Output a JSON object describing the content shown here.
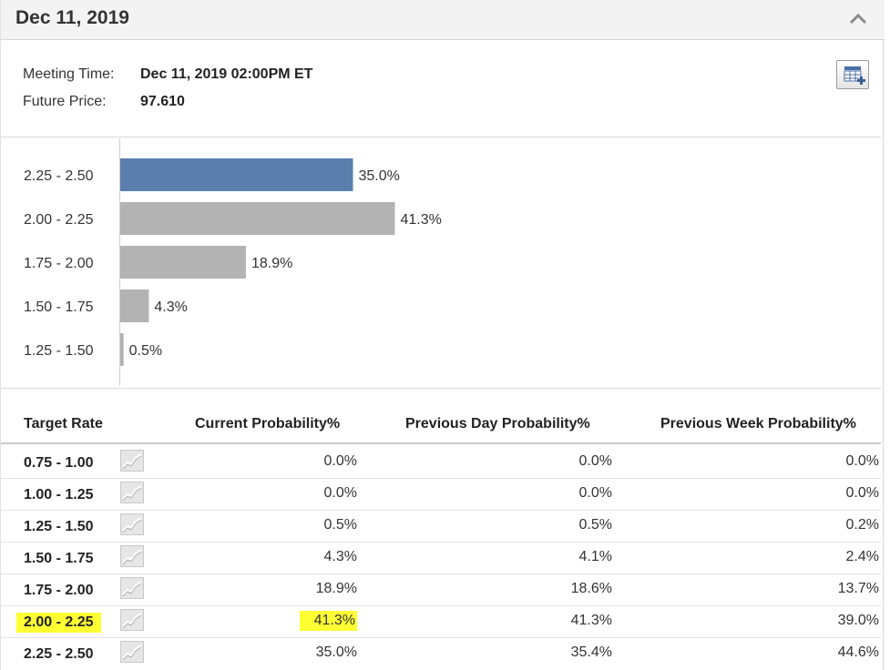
{
  "header": {
    "title": "Dec 11, 2019"
  },
  "meeting": {
    "time_label": "Meeting Time:",
    "time_value": "Dec 11, 2019 02:00PM ET",
    "price_label": "Future Price:",
    "price_value": "97.610"
  },
  "colors": {
    "highlight_bar": "#5a7fad",
    "bar": "#b3b3b3",
    "marker": "#ffff33"
  },
  "chart_data": {
    "type": "bar",
    "orientation": "horizontal",
    "categories": [
      "2.25 - 2.50",
      "2.00 - 2.25",
      "1.75 - 2.00",
      "1.50 - 1.75",
      "1.25 - 1.50"
    ],
    "values": [
      35.0,
      41.3,
      18.9,
      4.3,
      0.5
    ],
    "labels": [
      "35.0%",
      "41.3%",
      "18.9%",
      "4.3%",
      "0.5%"
    ],
    "highlight_index": 0,
    "xlim": [
      0,
      100
    ],
    "grid": false,
    "title": "",
    "xlabel": "",
    "ylabel": ""
  },
  "table": {
    "columns": [
      "Target Rate",
      "Current Probability%",
      "Previous Day Probability%",
      "Previous Week Probability%"
    ],
    "rows": [
      {
        "rate": "0.75 - 1.00",
        "current": "0.0%",
        "prev_day": "0.0%",
        "prev_week": "0.0%",
        "highlighted": false
      },
      {
        "rate": "1.00 - 1.25",
        "current": "0.0%",
        "prev_day": "0.0%",
        "prev_week": "0.0%",
        "highlighted": false
      },
      {
        "rate": "1.25 - 1.50",
        "current": "0.5%",
        "prev_day": "0.5%",
        "prev_week": "0.2%",
        "highlighted": false
      },
      {
        "rate": "1.50 - 1.75",
        "current": "4.3%",
        "prev_day": "4.1%",
        "prev_week": "2.4%",
        "highlighted": false
      },
      {
        "rate": "1.75 - 2.00",
        "current": "18.9%",
        "prev_day": "18.6%",
        "prev_week": "13.7%",
        "highlighted": false
      },
      {
        "rate": "2.00 - 2.25",
        "current": "41.3%",
        "prev_day": "41.3%",
        "prev_week": "39.0%",
        "highlighted": true
      },
      {
        "rate": "2.25 - 2.50",
        "current": "35.0%",
        "prev_day": "35.4%",
        "prev_week": "44.6%",
        "highlighted": false
      }
    ]
  },
  "icons": {
    "collapse": "chevron-up-icon",
    "export": "table-add-icon",
    "history": "line-chart-icon"
  }
}
